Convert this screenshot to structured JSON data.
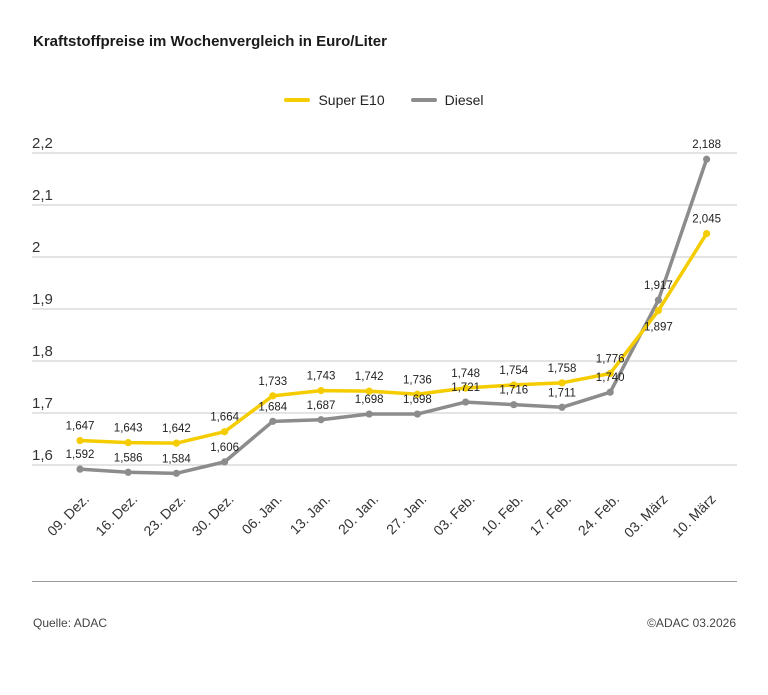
{
  "title": "Kraftstoffpreise im Wochenvergleich in Euro/Liter",
  "source": "Quelle: ADAC",
  "copyright": "©ADAC 03.2026",
  "colors": {
    "super_e10": "#f5cc00",
    "diesel": "#8c8c8c",
    "grid": "#c8c8c8"
  },
  "chart_data": {
    "type": "line",
    "title": "Kraftstoffpreise im Wochenvergleich in Euro/Liter",
    "xlabel": "",
    "ylabel": "",
    "categories": [
      "09. Dez.",
      "16. Dez.",
      "23. Dez.",
      "30. Dez.",
      "06. Jan.",
      "13. Jan.",
      "20. Jan.",
      "27. Jan.",
      "03. Feb.",
      "10. Feb.",
      "17. Feb.",
      "24. Feb.",
      "03. März",
      "10. März"
    ],
    "ylim": [
      1.55,
      2.22
    ],
    "yticks": [
      1.6,
      1.7,
      1.8,
      1.9,
      2.0,
      2.1,
      2.2
    ],
    "ytick_labels": [
      "1,6",
      "1,7",
      "1,8",
      "1,9",
      "2",
      "2,1",
      "2,2"
    ],
    "grid": true,
    "legend_position": "top-center",
    "series": [
      {
        "name": "Super E10",
        "color": "#f5cc00",
        "values": [
          1.647,
          1.643,
          1.642,
          1.664,
          1.733,
          1.743,
          1.742,
          1.736,
          1.748,
          1.754,
          1.758,
          1.776,
          1.897,
          2.045
        ],
        "labels": [
          "1,647",
          "1,643",
          "1,642",
          "1,664",
          "1,733",
          "1,743",
          "1,742",
          "1,736",
          "1,748",
          "1,754",
          "1,758",
          "1,776",
          "1,897",
          "2,045"
        ]
      },
      {
        "name": "Diesel",
        "color": "#8c8c8c",
        "values": [
          1.592,
          1.586,
          1.584,
          1.606,
          1.684,
          1.687,
          1.698,
          1.698,
          1.721,
          1.716,
          1.711,
          1.74,
          1.917,
          2.188
        ],
        "labels": [
          "1,592",
          "1,586",
          "1,584",
          "1,606",
          "1,684",
          "1,687",
          "1,698",
          "1,698",
          "1,721",
          "1,716",
          "1,711",
          "1,740",
          "1,917",
          "2,188"
        ]
      }
    ]
  }
}
